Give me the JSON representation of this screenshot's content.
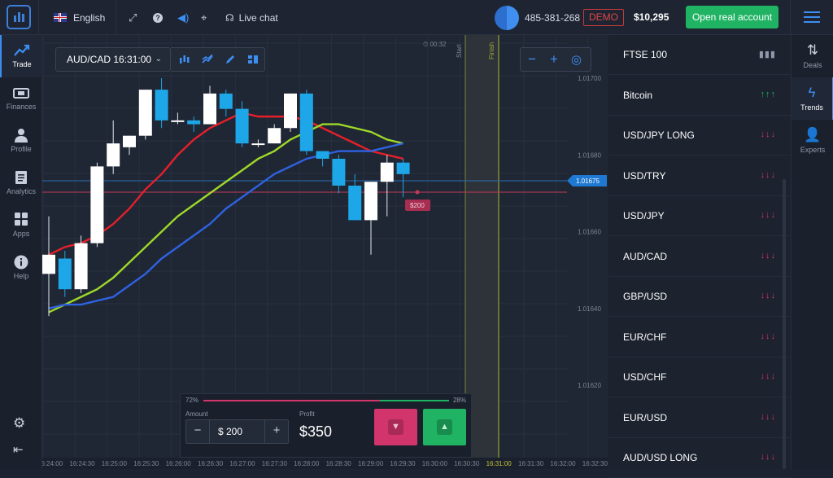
{
  "header": {
    "language": "English",
    "live_chat": "Live chat",
    "account_id": "485-381-268",
    "account_mode": "DEMO",
    "balance": "$10,295",
    "open_account_label": "Open real account"
  },
  "left_nav": {
    "items": [
      {
        "label": "Trade",
        "icon": "trend-icon"
      },
      {
        "label": "Finances",
        "icon": "wallet-icon"
      },
      {
        "label": "Profile",
        "icon": "user-icon"
      },
      {
        "label": "Analytics",
        "icon": "document-icon"
      },
      {
        "label": "Apps",
        "icon": "grid-icon"
      },
      {
        "label": "Help",
        "icon": "info-icon"
      }
    ]
  },
  "chart_toolbar": {
    "asset": "AUD/CAD 16:31:00",
    "timer": "00:32",
    "start_label": "Start",
    "finish_label": "Finish"
  },
  "chart_data": {
    "type": "candlestick",
    "x_ticks": [
      "16:24:00",
      "16:24:30",
      "16:25:00",
      "16:25:30",
      "16:26:00",
      "16:26:30",
      "16:27:00",
      "16:27:30",
      "16:28:00",
      "16:28:30",
      "16:29:00",
      "16:29:30",
      "16:30:00",
      "16:30:30",
      "16:31:00",
      "16:31:30",
      "16:32:00",
      "16:32:30"
    ],
    "y_ticks": [
      "1.01700",
      "1.01680",
      "1.01660",
      "1.01640",
      "1.01620"
    ],
    "current_price": "1.01675",
    "trade_marker": "$200",
    "ylim": [
      1.0161,
      1.0171
    ],
    "candles": [
      {
        "o": 1.01649,
        "c": 1.01654,
        "h": 1.01664,
        "l": 1.01638,
        "up": true
      },
      {
        "o": 1.01653,
        "c": 1.01645,
        "h": 1.01655,
        "l": 1.01643,
        "up": false
      },
      {
        "o": 1.01645,
        "c": 1.01657,
        "h": 1.01659,
        "l": 1.01644,
        "up": true
      },
      {
        "o": 1.01657,
        "c": 1.01677,
        "h": 1.01678,
        "l": 1.01656,
        "up": true
      },
      {
        "o": 1.01677,
        "c": 1.01683,
        "h": 1.01689,
        "l": 1.01675,
        "up": true
      },
      {
        "o": 1.01682,
        "c": 1.01685,
        "h": 1.01685,
        "l": 1.0168,
        "up": true
      },
      {
        "o": 1.01685,
        "c": 1.01697,
        "h": 1.01697,
        "l": 1.01684,
        "up": true
      },
      {
        "o": 1.01697,
        "c": 1.01689,
        "h": 1.017,
        "l": 1.01687,
        "up": false
      },
      {
        "o": 1.01689,
        "c": 1.01689,
        "h": 1.01691,
        "l": 1.01688,
        "up": true
      },
      {
        "o": 1.01689,
        "c": 1.01688,
        "h": 1.0169,
        "l": 1.01686,
        "up": false
      },
      {
        "o": 1.01688,
        "c": 1.01696,
        "h": 1.01698,
        "l": 1.01688,
        "up": true
      },
      {
        "o": 1.01696,
        "c": 1.01692,
        "h": 1.01697,
        "l": 1.0169,
        "up": false
      },
      {
        "o": 1.01692,
        "c": 1.01683,
        "h": 1.01694,
        "l": 1.01682,
        "up": false
      },
      {
        "o": 1.01683,
        "c": 1.01683,
        "h": 1.01684,
        "l": 1.01682,
        "up": true
      },
      {
        "o": 1.01683,
        "c": 1.01687,
        "h": 1.01688,
        "l": 1.01683,
        "up": true
      },
      {
        "o": 1.01687,
        "c": 1.01696,
        "h": 1.01696,
        "l": 1.01686,
        "up": true
      },
      {
        "o": 1.01696,
        "c": 1.01681,
        "h": 1.01697,
        "l": 1.0168,
        "up": false
      },
      {
        "o": 1.01681,
        "c": 1.01679,
        "h": 1.01681,
        "l": 1.01677,
        "up": false
      },
      {
        "o": 1.01679,
        "c": 1.01672,
        "h": 1.0168,
        "l": 1.0167,
        "up": false
      },
      {
        "o": 1.01672,
        "c": 1.01663,
        "h": 1.01675,
        "l": 1.01663,
        "up": false
      },
      {
        "o": 1.01663,
        "c": 1.01673,
        "h": 1.01673,
        "l": 1.01654,
        "up": true
      },
      {
        "o": 1.01673,
        "c": 1.01678,
        "h": 1.0168,
        "l": 1.01664,
        "up": true
      },
      {
        "o": 1.01678,
        "c": 1.01675,
        "h": 1.01679,
        "l": 1.01669,
        "up": false
      }
    ],
    "moving_averages": [
      {
        "color": "#e5202a",
        "values": [
          1.01654,
          1.01656,
          1.01657,
          1.01659,
          1.01662,
          1.01666,
          1.01671,
          1.01675,
          1.0168,
          1.01684,
          1.01687,
          1.01689,
          1.01691,
          1.0169,
          1.0169,
          1.0169,
          1.01689,
          1.01687,
          1.01685,
          1.01683,
          1.01681,
          1.0168,
          1.01679
        ]
      },
      {
        "color": "#9ed928",
        "values": [
          1.01639,
          1.01641,
          1.01643,
          1.01645,
          1.01648,
          1.01652,
          1.01656,
          1.0166,
          1.01664,
          1.01667,
          1.0167,
          1.01673,
          1.01676,
          1.01679,
          1.01681,
          1.01684,
          1.01686,
          1.01688,
          1.01688,
          1.01687,
          1.01686,
          1.01684,
          1.01683
        ]
      },
      {
        "color": "#2f62e0",
        "values": [
          1.0164,
          1.01641,
          1.01641,
          1.01642,
          1.01643,
          1.01646,
          1.01649,
          1.01653,
          1.01656,
          1.01659,
          1.01662,
          1.01666,
          1.01669,
          1.01672,
          1.01675,
          1.01677,
          1.01679,
          1.0168,
          1.01681,
          1.01681,
          1.01681,
          1.01682,
          1.01683
        ]
      }
    ]
  },
  "trade_panel": {
    "down_pct": "72%",
    "up_pct": "28%",
    "amount_label": "Amount",
    "amount_value": "$ 200",
    "profit_label": "Profit",
    "profit_value": "$350"
  },
  "assets": [
    {
      "name": "FTSE 100",
      "trend": "▮▮▮",
      "color": "#8f99aa"
    },
    {
      "name": "Bitcoin",
      "trend": "↑↑↑",
      "color": "#1fb363"
    },
    {
      "name": "USD/JPY LONG",
      "trend": "↓↓↓",
      "color": "#d1356b"
    },
    {
      "name": "USD/TRY",
      "trend": "↓↓↓",
      "color": "#d1356b"
    },
    {
      "name": "USD/JPY",
      "trend": "↓↓↓",
      "color": "#d1356b"
    },
    {
      "name": "AUD/CAD",
      "trend": "↓↓↓",
      "color": "#d1356b"
    },
    {
      "name": "GBP/USD",
      "trend": "↓↓↓",
      "color": "#d1356b"
    },
    {
      "name": "EUR/CHF",
      "trend": "↓↓↓",
      "color": "#d1356b"
    },
    {
      "name": "USD/CHF",
      "trend": "↓↓↓",
      "color": "#d1356b"
    },
    {
      "name": "EUR/USD",
      "trend": "↓↓↓",
      "color": "#d1356b"
    },
    {
      "name": "AUD/USD LONG",
      "trend": "↓↓↓",
      "color": "#d1356b"
    }
  ],
  "right_nav": {
    "items": [
      {
        "label": "Deals",
        "icon": "sort-icon"
      },
      {
        "label": "Trends",
        "icon": "lightning-icon"
      },
      {
        "label": "Experts",
        "icon": "add-user-icon"
      }
    ]
  }
}
